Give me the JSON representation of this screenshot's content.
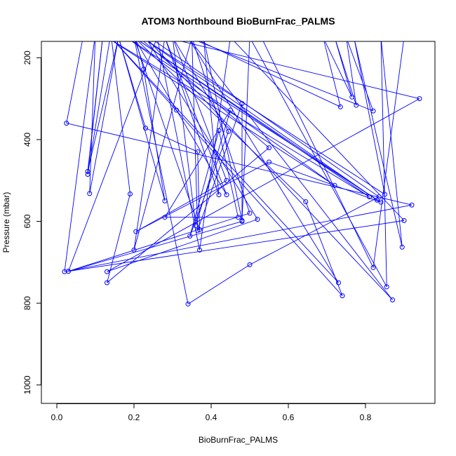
{
  "chart_data": {
    "type": "line",
    "title": "ATOM3 Northbound BioBurnFrac_PALMS",
    "xlabel": "BioBurnFrac_PALMS",
    "ylabel": "Pressure (mbar)",
    "xlim": [
      -0.04,
      0.98
    ],
    "ylim": [
      1045,
      160
    ],
    "y_reversed": true,
    "xticks": [
      0.0,
      0.2,
      0.4,
      0.6,
      0.8
    ],
    "xtick_labels": [
      "0.0",
      "0.2",
      "0.4",
      "0.6",
      "0.8"
    ],
    "yticks": [
      200,
      400,
      600,
      800,
      1000
    ],
    "ytick_labels": [
      "200",
      "400",
      "600",
      "800",
      "1000"
    ],
    "grid": false,
    "legend": "none",
    "series_color": "#0000ff",
    "series": [
      {
        "points": [
          [
            0.07,
            140
          ],
          [
            0.025,
            360
          ],
          [
            0.92,
            560
          ],
          [
            0.02,
            723
          ],
          [
            0.1,
            140
          ],
          [
            0.085,
            532
          ],
          [
            0.16,
            150
          ],
          [
            0.08,
            478
          ],
          [
            0.12,
            140
          ],
          [
            0.08,
            485
          ],
          [
            0.14,
            140
          ],
          [
            0.19,
            533
          ],
          [
            0.13,
            750
          ],
          [
            0.55,
            420
          ],
          [
            0.2,
            140
          ],
          [
            0.225,
            228
          ],
          [
            0.28,
            550
          ],
          [
            0.16,
            150
          ],
          [
            0.23,
            372
          ],
          [
            0.365,
            430
          ],
          [
            0.37,
            620
          ],
          [
            0.2,
            150
          ],
          [
            0.31,
            328
          ],
          [
            0.44,
            535
          ],
          [
            0.28,
            150
          ],
          [
            0.42,
            535
          ],
          [
            0.38,
            150
          ],
          [
            0.48,
            598
          ],
          [
            0.48,
            312
          ],
          [
            0.365,
            622
          ],
          [
            0.35,
            150
          ],
          [
            0.735,
            320
          ],
          [
            0.69,
            150
          ],
          [
            0.765,
            296
          ],
          [
            0.72,
            150
          ],
          [
            0.776,
            316
          ],
          [
            0.75,
            150
          ],
          [
            0.82,
            330
          ],
          [
            0.34,
            150
          ],
          [
            0.3,
            150
          ],
          [
            0.36,
            610
          ],
          [
            0.45,
            328
          ],
          [
            0.28,
            590
          ],
          [
            0.47,
            590
          ],
          [
            0.42,
            378
          ],
          [
            0.345,
            636
          ],
          [
            0.445,
            380
          ],
          [
            0.3,
            150
          ],
          [
            0.44,
            500
          ],
          [
            0.205,
            625
          ],
          [
            0.55,
            455
          ],
          [
            0.84,
            553
          ],
          [
            0.18,
            150
          ],
          [
            0.72,
            512
          ],
          [
            0.13,
            150
          ],
          [
            0.81,
            540
          ],
          [
            0.2,
            150
          ],
          [
            0.83,
            548
          ],
          [
            0.22,
            150
          ],
          [
            0.85,
            534
          ],
          [
            0.77,
            150
          ],
          [
            0.895,
            663
          ],
          [
            0.84,
            150
          ],
          [
            0.855,
            760
          ],
          [
            0.5,
            150
          ],
          [
            0.48,
            600
          ],
          [
            0.03,
            722
          ],
          [
            0.26,
            150
          ],
          [
            0.37,
            670
          ],
          [
            0.45,
            150
          ],
          [
            0.9,
            598
          ],
          [
            0.03,
            722
          ],
          [
            0.5,
            580
          ],
          [
            0.35,
            150
          ],
          [
            0.2,
            670
          ],
          [
            0.28,
            150
          ],
          [
            0.94,
            300
          ],
          [
            0.13,
            723
          ],
          [
            0.52,
            595
          ],
          [
            0.23,
            150
          ],
          [
            0.87,
            792
          ],
          [
            0.34,
            150
          ],
          [
            0.73,
            750
          ],
          [
            0.14,
            150
          ],
          [
            0.74,
            782
          ],
          [
            0.645,
            552
          ],
          [
            0.2,
            150
          ],
          [
            0.34,
            802
          ],
          [
            0.5,
            706
          ],
          [
            0.835,
            540
          ],
          [
            0.24,
            150
          ],
          [
            0.53,
            150
          ],
          [
            0.82,
            713
          ],
          [
            0.9,
            150
          ]
        ]
      }
    ]
  }
}
